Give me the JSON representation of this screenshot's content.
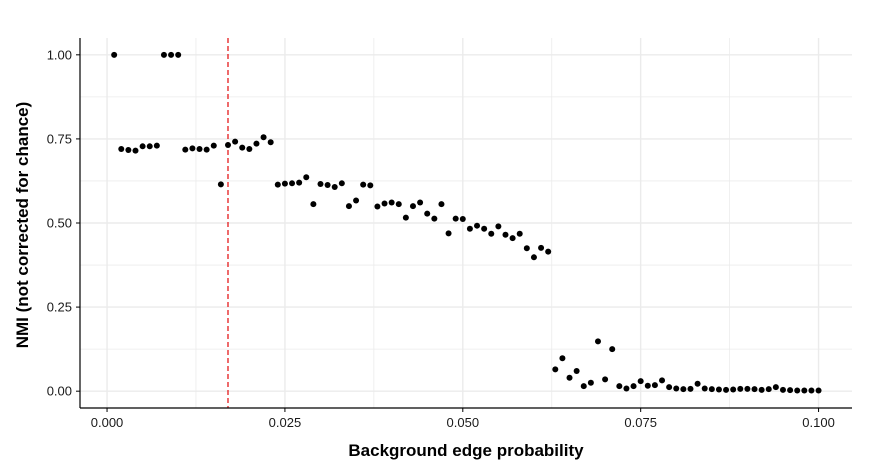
{
  "chart_data": {
    "type": "scatter",
    "title": "",
    "xlabel": "Background edge probability",
    "ylabel": "NMI (not corrected for chance)",
    "xlim": [
      -0.0038,
      0.1047
    ],
    "ylim": [
      -0.05,
      1.05
    ],
    "xticks": [
      0.0,
      0.025,
      0.05,
      0.075,
      0.1
    ],
    "xtick_labels": [
      "0.000",
      "0.025",
      "0.050",
      "0.075",
      "0.100"
    ],
    "yticks": [
      0.0,
      0.25,
      0.5,
      0.75,
      1.0
    ],
    "ytick_labels": [
      "0.00",
      "0.25",
      "0.50",
      "0.75",
      "1.00"
    ],
    "grid": true,
    "legend": "none",
    "colors": {
      "points": "#000000",
      "reference_line": "#e41a1c",
      "grid": "#ebebeb",
      "axis": "#000000"
    },
    "reference_line": {
      "orientation": "vertical",
      "x": 0.017,
      "style": "dashed"
    },
    "series": [
      {
        "points": [
          [
            0.001,
            1.0
          ],
          [
            0.002,
            0.72
          ],
          [
            0.003,
            0.717
          ],
          [
            0.004,
            0.715
          ],
          [
            0.005,
            0.728
          ],
          [
            0.006,
            0.728
          ],
          [
            0.007,
            0.73
          ],
          [
            0.008,
            1.0
          ],
          [
            0.009,
            1.0
          ],
          [
            0.01,
            1.0
          ],
          [
            0.011,
            0.718
          ],
          [
            0.012,
            0.722
          ],
          [
            0.013,
            0.72
          ],
          [
            0.014,
            0.718
          ],
          [
            0.015,
            0.73
          ],
          [
            0.016,
            0.615
          ],
          [
            0.017,
            0.732
          ],
          [
            0.018,
            0.742
          ],
          [
            0.019,
            0.724
          ],
          [
            0.02,
            0.72
          ],
          [
            0.021,
            0.736
          ],
          [
            0.022,
            0.755
          ],
          [
            0.023,
            0.74
          ],
          [
            0.024,
            0.614
          ],
          [
            0.025,
            0.617
          ],
          [
            0.026,
            0.618
          ],
          [
            0.027,
            0.62
          ],
          [
            0.028,
            0.636
          ],
          [
            0.029,
            0.556
          ],
          [
            0.03,
            0.616
          ],
          [
            0.031,
            0.613
          ],
          [
            0.032,
            0.607
          ],
          [
            0.033,
            0.618
          ],
          [
            0.034,
            0.55
          ],
          [
            0.035,
            0.567
          ],
          [
            0.036,
            0.614
          ],
          [
            0.037,
            0.612
          ],
          [
            0.038,
            0.549
          ],
          [
            0.039,
            0.558
          ],
          [
            0.04,
            0.561
          ],
          [
            0.041,
            0.556
          ],
          [
            0.042,
            0.516
          ],
          [
            0.043,
            0.55
          ],
          [
            0.044,
            0.561
          ],
          [
            0.045,
            0.528
          ],
          [
            0.046,
            0.513
          ],
          [
            0.047,
            0.556
          ],
          [
            0.048,
            0.469
          ],
          [
            0.049,
            0.513
          ],
          [
            0.05,
            0.512
          ],
          [
            0.051,
            0.483
          ],
          [
            0.052,
            0.492
          ],
          [
            0.053,
            0.483
          ],
          [
            0.054,
            0.468
          ],
          [
            0.055,
            0.49
          ],
          [
            0.056,
            0.465
          ],
          [
            0.057,
            0.455
          ],
          [
            0.058,
            0.468
          ],
          [
            0.059,
            0.425
          ],
          [
            0.06,
            0.398
          ],
          [
            0.061,
            0.426
          ],
          [
            0.062,
            0.415
          ],
          [
            0.063,
            0.065
          ],
          [
            0.064,
            0.098
          ],
          [
            0.065,
            0.04
          ],
          [
            0.066,
            0.06
          ],
          [
            0.067,
            0.015
          ],
          [
            0.068,
            0.025
          ],
          [
            0.069,
            0.148
          ],
          [
            0.07,
            0.035
          ],
          [
            0.071,
            0.125
          ],
          [
            0.072,
            0.015
          ],
          [
            0.073,
            0.008
          ],
          [
            0.074,
            0.015
          ],
          [
            0.075,
            0.03
          ],
          [
            0.076,
            0.016
          ],
          [
            0.077,
            0.018
          ],
          [
            0.078,
            0.032
          ],
          [
            0.079,
            0.012
          ],
          [
            0.08,
            0.008
          ],
          [
            0.081,
            0.006
          ],
          [
            0.082,
            0.007
          ],
          [
            0.083,
            0.022
          ],
          [
            0.084,
            0.008
          ],
          [
            0.085,
            0.006
          ],
          [
            0.086,
            0.005
          ],
          [
            0.087,
            0.004
          ],
          [
            0.088,
            0.005
          ],
          [
            0.089,
            0.007
          ],
          [
            0.09,
            0.007
          ],
          [
            0.091,
            0.006
          ],
          [
            0.092,
            0.004
          ],
          [
            0.093,
            0.006
          ],
          [
            0.094,
            0.012
          ],
          [
            0.095,
            0.004
          ],
          [
            0.096,
            0.003
          ],
          [
            0.097,
            0.002
          ],
          [
            0.098,
            0.002
          ],
          [
            0.099,
            0.002
          ],
          [
            0.1,
            0.002
          ]
        ]
      }
    ]
  }
}
